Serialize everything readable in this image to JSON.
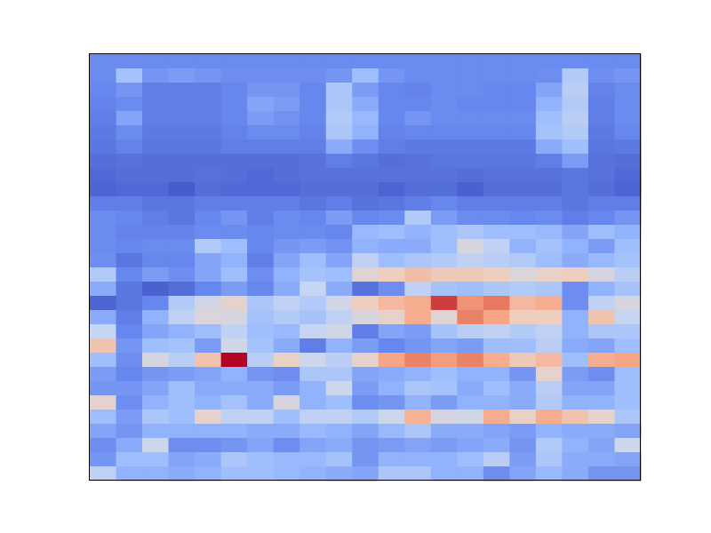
{
  "chart_data": {
    "type": "heatmap",
    "title": "",
    "xlabel": "",
    "ylabel": "",
    "n_rows": 30,
    "n_cols": 21,
    "colormap": "coolwarm",
    "value_range": [
      0,
      1
    ],
    "colormap_stops": [
      "#3b4cc0",
      "#6788ee",
      "#9abbff",
      "#c9d7f0",
      "#edd1c2",
      "#f7a889",
      "#e26952",
      "#b40426"
    ],
    "grid": false,
    "values": [
      [
        0.15,
        0.15,
        0.15,
        0.15,
        0.15,
        0.15,
        0.15,
        0.15,
        0.15,
        0.15,
        0.15,
        0.15,
        0.15,
        0.15,
        0.15,
        0.15,
        0.15,
        0.15,
        0.15,
        0.15,
        0.15
      ],
      [
        0.15,
        0.32,
        0.18,
        0.2,
        0.18,
        0.16,
        0.16,
        0.16,
        0.16,
        0.18,
        0.3,
        0.18,
        0.15,
        0.15,
        0.15,
        0.15,
        0.15,
        0.16,
        0.36,
        0.16,
        0.18
      ],
      [
        0.14,
        0.18,
        0.12,
        0.12,
        0.12,
        0.14,
        0.18,
        0.18,
        0.14,
        0.34,
        0.2,
        0.14,
        0.13,
        0.15,
        0.15,
        0.14,
        0.14,
        0.22,
        0.38,
        0.13,
        0.15
      ],
      [
        0.13,
        0.15,
        0.12,
        0.12,
        0.12,
        0.14,
        0.22,
        0.2,
        0.14,
        0.34,
        0.24,
        0.14,
        0.14,
        0.15,
        0.14,
        0.14,
        0.14,
        0.26,
        0.36,
        0.12,
        0.15
      ],
      [
        0.12,
        0.22,
        0.12,
        0.12,
        0.12,
        0.14,
        0.2,
        0.17,
        0.14,
        0.36,
        0.28,
        0.14,
        0.18,
        0.15,
        0.15,
        0.15,
        0.15,
        0.3,
        0.38,
        0.12,
        0.15
      ],
      [
        0.11,
        0.15,
        0.11,
        0.11,
        0.11,
        0.13,
        0.15,
        0.15,
        0.13,
        0.34,
        0.26,
        0.13,
        0.14,
        0.14,
        0.14,
        0.14,
        0.14,
        0.32,
        0.36,
        0.11,
        0.14
      ],
      [
        0.1,
        0.13,
        0.1,
        0.1,
        0.1,
        0.12,
        0.12,
        0.12,
        0.12,
        0.24,
        0.16,
        0.12,
        0.11,
        0.11,
        0.11,
        0.11,
        0.11,
        0.24,
        0.3,
        0.1,
        0.11
      ],
      [
        0.08,
        0.09,
        0.08,
        0.08,
        0.08,
        0.08,
        0.08,
        0.08,
        0.09,
        0.12,
        0.1,
        0.08,
        0.09,
        0.1,
        0.1,
        0.1,
        0.1,
        0.12,
        0.2,
        0.09,
        0.08
      ],
      [
        0.07,
        0.08,
        0.08,
        0.08,
        0.09,
        0.08,
        0.07,
        0.08,
        0.09,
        0.09,
        0.09,
        0.09,
        0.09,
        0.09,
        0.08,
        0.09,
        0.09,
        0.09,
        0.1,
        0.09,
        0.07
      ],
      [
        0.06,
        0.07,
        0.07,
        0.04,
        0.08,
        0.07,
        0.07,
        0.07,
        0.08,
        0.08,
        0.08,
        0.06,
        0.08,
        0.08,
        0.05,
        0.08,
        0.08,
        0.08,
        0.1,
        0.08,
        0.06
      ],
      [
        0.12,
        0.12,
        0.1,
        0.1,
        0.12,
        0.12,
        0.12,
        0.12,
        0.1,
        0.12,
        0.09,
        0.1,
        0.12,
        0.14,
        0.12,
        0.12,
        0.12,
        0.12,
        0.1,
        0.12,
        0.12
      ],
      [
        0.15,
        0.14,
        0.12,
        0.1,
        0.14,
        0.18,
        0.12,
        0.15,
        0.14,
        0.2,
        0.14,
        0.15,
        0.36,
        0.2,
        0.15,
        0.15,
        0.14,
        0.15,
        0.12,
        0.14,
        0.18
      ],
      [
        0.15,
        0.13,
        0.13,
        0.13,
        0.15,
        0.15,
        0.14,
        0.15,
        0.15,
        0.14,
        0.28,
        0.3,
        0.26,
        0.3,
        0.34,
        0.3,
        0.3,
        0.28,
        0.22,
        0.3,
        0.26
      ],
      [
        0.15,
        0.14,
        0.15,
        0.15,
        0.36,
        0.3,
        0.14,
        0.18,
        0.2,
        0.17,
        0.26,
        0.24,
        0.24,
        0.3,
        0.48,
        0.4,
        0.26,
        0.32,
        0.26,
        0.2,
        0.3
      ],
      [
        0.16,
        0.1,
        0.14,
        0.14,
        0.22,
        0.26,
        0.12,
        0.22,
        0.3,
        0.22,
        0.4,
        0.3,
        0.34,
        0.36,
        0.4,
        0.38,
        0.36,
        0.3,
        0.24,
        0.28,
        0.32
      ],
      [
        0.36,
        0.14,
        0.2,
        0.16,
        0.22,
        0.3,
        0.16,
        0.26,
        0.32,
        0.3,
        0.52,
        0.58,
        0.64,
        0.6,
        0.6,
        0.58,
        0.5,
        0.56,
        0.58,
        0.48,
        0.38
      ],
      [
        0.24,
        0.1,
        0.05,
        0.08,
        0.14,
        0.2,
        0.14,
        0.24,
        0.42,
        0.24,
        0.09,
        0.16,
        0.4,
        0.32,
        0.3,
        0.34,
        0.36,
        0.34,
        0.16,
        0.26,
        0.32
      ],
      [
        0.06,
        0.1,
        0.14,
        0.36,
        0.46,
        0.54,
        0.34,
        0.4,
        0.36,
        0.46,
        0.58,
        0.66,
        0.7,
        0.92,
        0.76,
        0.82,
        0.66,
        0.7,
        0.16,
        0.4,
        0.48
      ],
      [
        0.24,
        0.12,
        0.26,
        0.4,
        0.5,
        0.48,
        0.32,
        0.36,
        0.32,
        0.4,
        0.48,
        0.54,
        0.7,
        0.52,
        0.8,
        0.72,
        0.58,
        0.58,
        0.26,
        0.62,
        0.42
      ],
      [
        0.42,
        0.14,
        0.22,
        0.26,
        0.3,
        0.4,
        0.3,
        0.28,
        0.42,
        0.46,
        0.12,
        0.22,
        0.2,
        0.32,
        0.38,
        0.4,
        0.36,
        0.4,
        0.26,
        0.34,
        0.34
      ],
      [
        0.62,
        0.18,
        0.3,
        0.32,
        0.2,
        0.46,
        0.32,
        0.24,
        0.12,
        0.26,
        0.2,
        0.14,
        0.18,
        0.22,
        0.2,
        0.3,
        0.3,
        0.38,
        0.24,
        0.22,
        0.3
      ],
      [
        0.3,
        0.16,
        0.48,
        0.38,
        0.62,
        1.0,
        0.38,
        0.56,
        0.44,
        0.38,
        0.54,
        0.72,
        0.8,
        0.74,
        0.8,
        0.7,
        0.6,
        0.66,
        0.3,
        0.7,
        0.72
      ],
      [
        0.2,
        0.14,
        0.18,
        0.2,
        0.22,
        0.26,
        0.18,
        0.16,
        0.34,
        0.34,
        0.22,
        0.24,
        0.26,
        0.3,
        0.26,
        0.26,
        0.18,
        0.54,
        0.2,
        0.16,
        0.3
      ],
      [
        0.18,
        0.18,
        0.22,
        0.3,
        0.24,
        0.24,
        0.24,
        0.2,
        0.26,
        0.44,
        0.2,
        0.26,
        0.34,
        0.32,
        0.24,
        0.3,
        0.24,
        0.38,
        0.22,
        0.22,
        0.3
      ],
      [
        0.54,
        0.16,
        0.26,
        0.3,
        0.26,
        0.32,
        0.24,
        0.48,
        0.26,
        0.3,
        0.16,
        0.18,
        0.26,
        0.2,
        0.26,
        0.26,
        0.24,
        0.36,
        0.26,
        0.26,
        0.3
      ],
      [
        0.3,
        0.2,
        0.34,
        0.3,
        0.54,
        0.4,
        0.4,
        0.3,
        0.4,
        0.4,
        0.36,
        0.44,
        0.68,
        0.48,
        0.46,
        0.7,
        0.56,
        0.7,
        0.62,
        0.54,
        0.34
      ],
      [
        0.22,
        0.18,
        0.26,
        0.26,
        0.26,
        0.26,
        0.24,
        0.24,
        0.28,
        0.26,
        0.22,
        0.28,
        0.34,
        0.24,
        0.24,
        0.22,
        0.2,
        0.26,
        0.24,
        0.24,
        0.22
      ],
      [
        0.16,
        0.24,
        0.44,
        0.16,
        0.16,
        0.18,
        0.22,
        0.16,
        0.22,
        0.24,
        0.18,
        0.2,
        0.22,
        0.2,
        0.22,
        0.24,
        0.18,
        0.36,
        0.26,
        0.22,
        0.44
      ],
      [
        0.18,
        0.3,
        0.3,
        0.22,
        0.24,
        0.34,
        0.3,
        0.28,
        0.28,
        0.32,
        0.18,
        0.26,
        0.26,
        0.26,
        0.3,
        0.38,
        0.2,
        0.34,
        0.24,
        0.24,
        0.22
      ],
      [
        0.4,
        0.26,
        0.26,
        0.24,
        0.26,
        0.3,
        0.3,
        0.28,
        0.26,
        0.24,
        0.22,
        0.34,
        0.34,
        0.26,
        0.26,
        0.16,
        0.22,
        0.28,
        0.24,
        0.18,
        0.18
      ]
    ]
  }
}
